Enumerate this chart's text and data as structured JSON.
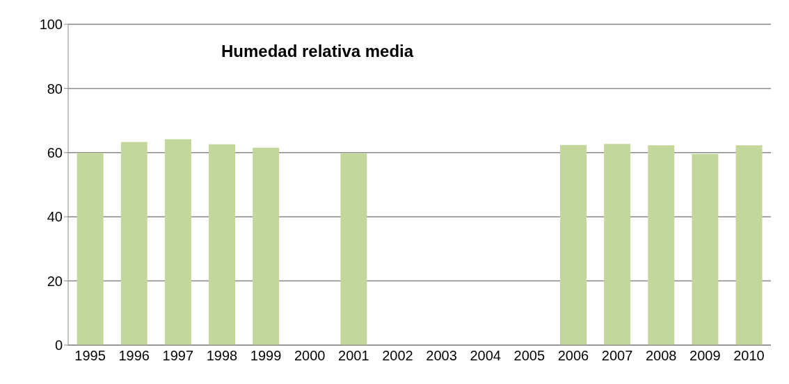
{
  "chart_data": {
    "type": "bar",
    "title": "Humedad relativa media",
    "categories": [
      "1995",
      "1996",
      "1997",
      "1998",
      "1999",
      "2000",
      "2001",
      "2002",
      "2003",
      "2004",
      "2005",
      "2006",
      "2007",
      "2008",
      "2009",
      "2010"
    ],
    "values": [
      59.9,
      63.3,
      64.2,
      62.6,
      61.5,
      null,
      59.8,
      null,
      null,
      null,
      null,
      62.4,
      62.7,
      62.3,
      59.6,
      62.3
    ],
    "color": "#c4d79b",
    "ylim": [
      0,
      100
    ],
    "yticks": [
      0,
      20,
      40,
      60,
      80,
      100
    ],
    "grid": "y"
  }
}
